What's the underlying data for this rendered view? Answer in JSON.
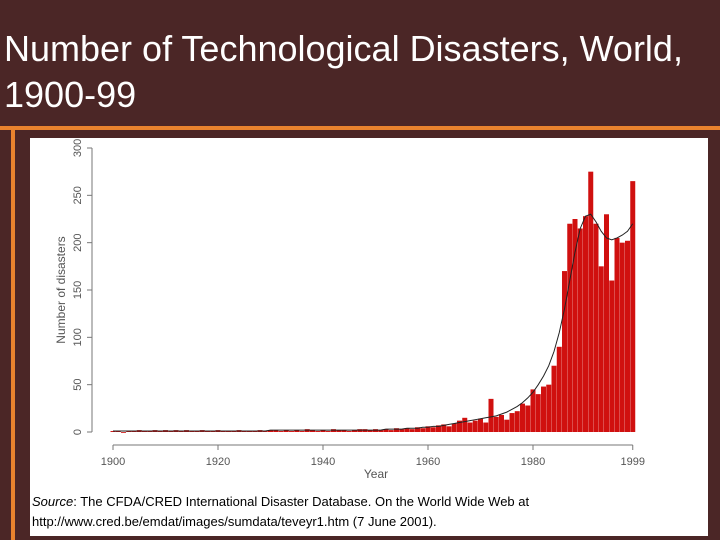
{
  "chart_data": {
    "type": "bar",
    "title": "Number of Technological Disasters, World, 1900-99",
    "x_label": "Year",
    "y_label": "Number of disasters",
    "x": [
      1900,
      1901,
      1902,
      1903,
      1904,
      1905,
      1906,
      1907,
      1908,
      1909,
      1910,
      1911,
      1912,
      1913,
      1914,
      1915,
      1916,
      1917,
      1918,
      1919,
      1920,
      1921,
      1922,
      1923,
      1924,
      1925,
      1926,
      1927,
      1928,
      1929,
      1930,
      1931,
      1932,
      1933,
      1934,
      1935,
      1936,
      1937,
      1938,
      1939,
      1940,
      1941,
      1942,
      1943,
      1944,
      1945,
      1946,
      1947,
      1948,
      1949,
      1950,
      1951,
      1952,
      1953,
      1954,
      1955,
      1956,
      1957,
      1958,
      1959,
      1960,
      1961,
      1962,
      1963,
      1964,
      1965,
      1966,
      1967,
      1968,
      1969,
      1970,
      1971,
      1972,
      1973,
      1974,
      1975,
      1976,
      1977,
      1978,
      1979,
      1980,
      1981,
      1982,
      1983,
      1984,
      1985,
      1986,
      1987,
      1988,
      1989,
      1990,
      1991,
      1992,
      1993,
      1994,
      1995,
      1996,
      1997,
      1998,
      1999
    ],
    "series": [
      {
        "color": "#d0100f",
        "values": [
          1,
          1,
          0,
          1,
          1,
          2,
          1,
          1,
          2,
          1,
          2,
          1,
          2,
          1,
          2,
          1,
          1,
          2,
          1,
          1,
          2,
          1,
          1,
          1,
          2,
          1,
          1,
          1,
          2,
          1,
          2,
          2,
          1,
          2,
          1,
          2,
          1,
          3,
          2,
          1,
          2,
          1,
          3,
          2,
          2,
          1,
          2,
          3,
          3,
          2,
          3,
          2,
          3,
          2,
          4,
          3,
          4,
          3,
          5,
          4,
          6,
          5,
          7,
          8,
          6,
          9,
          12,
          15,
          10,
          12,
          14,
          10,
          35,
          16,
          18,
          13,
          20,
          22,
          30,
          28,
          45,
          40,
          48,
          50,
          70,
          90,
          170,
          220,
          225,
          215,
          228,
          275,
          220,
          175,
          230,
          160,
          205,
          200,
          202,
          265
        ]
      },
      {
        "type": "line",
        "color": "#222222",
        "values": [
          1,
          1,
          1,
          1,
          1,
          1,
          1,
          1,
          1,
          1,
          1,
          1,
          1,
          1,
          1,
          1,
          1,
          1,
          1,
          1,
          1,
          1,
          1,
          1,
          1,
          1,
          1,
          1,
          1,
          1,
          2,
          2,
          2,
          2,
          2,
          2,
          2,
          2,
          2,
          2,
          2,
          2,
          2,
          2,
          2,
          2,
          2,
          2,
          2,
          2,
          2,
          2,
          3,
          3,
          3,
          3,
          4,
          4,
          4,
          5,
          5,
          6,
          6,
          7,
          8,
          9,
          10,
          11,
          12,
          13,
          14,
          15,
          16,
          17,
          19,
          21,
          24,
          27,
          31,
          36,
          42,
          50,
          59,
          70,
          85,
          105,
          130,
          160,
          190,
          215,
          228,
          230,
          222,
          212,
          205,
          203,
          205,
          208,
          212,
          220
        ]
      }
    ],
    "xlim": [
      1900,
      2004
    ],
    "xticks": [
      1900,
      1920,
      1940,
      1960,
      1980,
      1999
    ],
    "ylim": [
      0,
      300
    ],
    "yticks": [
      0,
      50,
      100,
      150,
      200,
      250,
      300
    ]
  },
  "source": {
    "label": "Source",
    "text": ": The CFDA/CRED International Disaster Database. On the World Wide Web at http://www.cred.be/emdat/images/sumdata/teveyr1.htm (7 June 2001)."
  }
}
